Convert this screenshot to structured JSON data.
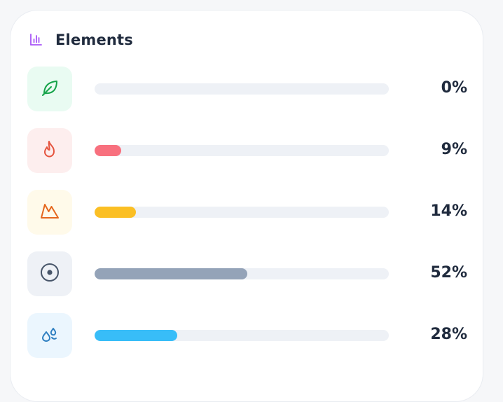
{
  "panel": {
    "title": "Elements",
    "header_icon": "bar-chart-icon",
    "accent": "#a855f7"
  },
  "elements": [
    {
      "icon": "leaf-icon",
      "percent_label": "0%",
      "value": 0,
      "tile_color": "#e9fbf2",
      "icon_color": "#16a34a",
      "bar_color": "#22c55e"
    },
    {
      "icon": "fire-icon",
      "percent_label": "9%",
      "value": 9,
      "tile_color": "#fdeeee",
      "icon_color": "#e5533d",
      "bar_color": "#f8707e"
    },
    {
      "icon": "earth-icon",
      "percent_label": "14%",
      "value": 14,
      "tile_color": "#fffaea",
      "icon_color": "#e5661d",
      "bar_color": "#fbbf24"
    },
    {
      "icon": "metal-icon",
      "percent_label": "52%",
      "value": 52,
      "tile_color": "#eef1f6",
      "icon_color": "#475569",
      "bar_color": "#94a3b8"
    },
    {
      "icon": "water-icon",
      "percent_label": "28%",
      "value": 28,
      "tile_color": "#ebf6fe",
      "icon_color": "#2e7fc1",
      "bar_color": "#38bdf8"
    }
  ]
}
